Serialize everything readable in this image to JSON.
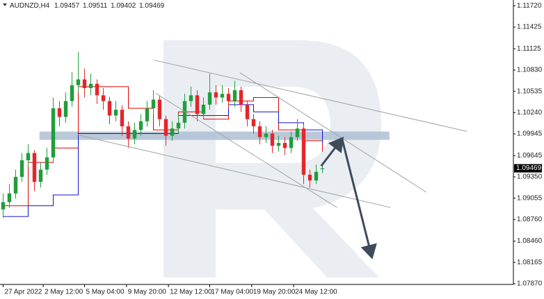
{
  "chart_data": {
    "type": "candlestick",
    "symbol": "AUDNZD,H4",
    "ylim": [
      1.0786,
      1.118
    ],
    "xlim": [
      -0.5,
      81.5
    ],
    "yticks": [
      {
        "value": 1.1172,
        "label": "1.11720"
      },
      1.11425,
      1.11125,
      {
        "value": 1.1083,
        "label": "1.10830"
      },
      1.10535,
      {
        "value": 1.1024,
        "label": "1.10240"
      },
      1.09945,
      1.09645,
      {
        "value": 1.0935,
        "label": "1.09350"
      },
      1.09055,
      {
        "value": 1.0876,
        "label": "1.08760"
      },
      {
        "value": 1.0846,
        "label": "1.08460"
      },
      1.08165,
      {
        "value": 1.0787,
        "label": "1.07870"
      }
    ],
    "xticks": [
      {
        "value": 0,
        "label": "27 Apr 2022"
      },
      {
        "value": 6.4,
        "label": "2 May 12:00"
      },
      {
        "value": 13,
        "label": "5 May 04:00"
      },
      {
        "value": 19.7,
        "label": "9 May 20:00"
      },
      {
        "value": 26.4,
        "label": "12 May 12:00"
      },
      {
        "value": 33,
        "label": "17 May 04:00"
      },
      {
        "value": 39.7,
        "label": "19 May 20:00"
      },
      {
        "value": 46.4,
        "label": "24 May 12:00"
      }
    ],
    "up_color": "#1f9e3c",
    "down_color": "#e3262b",
    "open": [
      1.089,
      1.09,
      1.0912,
      1.0935,
      1.0958,
      1.0968,
      1.0928,
      1.0945,
      1.0962,
      1.103,
      1.1018,
      1.104,
      1.1062,
      1.107,
      1.1058,
      1.1064,
      1.1048,
      1.104,
      1.102,
      1.1028,
      1.1005,
      1.0988,
      1.1,
      1.1012,
      1.103,
      1.1042,
      1.1015,
      1.0992,
      1.1002,
      1.101,
      1.104,
      1.1048,
      1.1022,
      1.1035,
      1.1052,
      1.1045,
      1.105,
      1.104,
      1.1055,
      1.1035,
      1.1015,
      1.1005,
      1.099,
      1.0995,
      1.0978,
      1.0982,
      1.0975,
      1.099,
      1.1002,
      1.0938,
      1.093,
      1.09457
    ],
    "high": [
      1.0912,
      1.0925,
      1.0945,
      1.0968,
      1.098,
      1.0972,
      1.0955,
      1.0975,
      1.1045,
      1.104,
      1.1052,
      1.108,
      1.1108,
      1.1085,
      1.1078,
      1.107,
      1.1058,
      1.1046,
      1.104,
      1.1034,
      1.1012,
      1.101,
      1.1022,
      1.104,
      1.1055,
      1.1048,
      1.102,
      1.1012,
      1.1022,
      1.105,
      1.106,
      1.1055,
      1.1045,
      1.1078,
      1.1062,
      1.1062,
      1.1058,
      1.1068,
      1.106,
      1.104,
      1.1022,
      1.1012,
      1.1005,
      1.1,
      1.0992,
      1.099,
      1.0998,
      1.1015,
      1.1008,
      1.0945,
      1.0952,
      1.09511
    ],
    "low": [
      1.0878,
      1.0892,
      1.0905,
      1.0928,
      1.095,
      1.0915,
      1.092,
      1.0938,
      1.0955,
      1.1005,
      1.101,
      1.1032,
      1.1052,
      1.1045,
      1.1048,
      1.1036,
      1.1028,
      1.1008,
      1.1012,
      1.0992,
      1.0975,
      1.098,
      1.0992,
      1.1005,
      1.1022,
      1.1005,
      1.0978,
      1.0985,
      1.0995,
      1.1002,
      1.1032,
      1.1012,
      1.1015,
      1.1028,
      1.1035,
      1.1038,
      1.103,
      1.1032,
      1.1025,
      1.1005,
      1.0995,
      1.098,
      1.0982,
      1.0968,
      1.097,
      1.0965,
      1.0968,
      1.0985,
      1.0925,
      1.092,
      1.0925,
      1.09402
    ],
    "close": [
      1.09,
      1.0912,
      1.0935,
      1.0958,
      1.0968,
      1.0928,
      1.0945,
      1.0962,
      1.103,
      1.1018,
      1.104,
      1.1062,
      1.107,
      1.1058,
      1.1064,
      1.1048,
      1.104,
      1.102,
      1.1028,
      1.1005,
      1.0988,
      1.1,
      1.1012,
      1.103,
      1.1042,
      1.1015,
      1.0992,
      1.1002,
      1.101,
      1.104,
      1.1048,
      1.1022,
      1.1035,
      1.1052,
      1.1045,
      1.105,
      1.104,
      1.1055,
      1.1035,
      1.1015,
      1.1005,
      1.099,
      1.0995,
      1.0978,
      1.0982,
      1.0975,
      1.099,
      1.1002,
      1.0938,
      1.093,
      1.0942,
      1.09469
    ],
    "indicators": [
      {
        "color": "#e00000",
        "x": [
          0,
          4,
          8,
          12,
          16,
          20,
          24,
          28,
          32,
          36,
          40,
          44,
          48,
          51
        ],
        "values": [
          1.0895,
          1.0955,
          1.0975,
          1.106,
          1.106,
          1.103,
          1.1,
          1.1025,
          1.1015,
          1.104,
          1.1045,
          1.1,
          1.0985,
          1.097
        ]
      },
      {
        "color": "#1010d0",
        "x": [
          0,
          4,
          8,
          12,
          16,
          20,
          24,
          28,
          32,
          36,
          40,
          44,
          48,
          51
        ],
        "values": [
          1.088,
          1.0895,
          1.091,
          1.0995,
          1.0995,
          1.0995,
          1.0995,
          1.102,
          1.102,
          1.1035,
          1.1025,
          1.101,
          1.1,
          1.0982
        ]
      }
    ],
    "band": {
      "color": "#aebfd3",
      "x": [
        5.8,
        61.7
      ],
      "y": 1.0992
    },
    "trendlines": [
      {
        "color": "#a0a0a0",
        "x": [
          24.1,
          74.1
        ],
        "y": [
          1.10967,
          1.0998
        ]
      },
      {
        "color": "#a0a0a0",
        "x": [
          37.8,
          67.6
        ],
        "y": [
          1.10794,
          1.09137
        ]
      },
      {
        "color": "#a0a0a0",
        "x": [
          11.9,
          61.9
        ],
        "y": [
          1.09932,
          1.08926
        ]
      },
      {
        "color": "#a0a0a0",
        "x": [
          24.4,
          53.3
        ],
        "y": [
          1.10507,
          1.08926
        ]
      }
    ],
    "arrows": [
      {
        "color": "#3d4b5a",
        "x": [
          50.8,
          54.2
        ],
        "y": [
          1.09501,
          1.09884
        ]
      },
      {
        "color": "#3d4b5a",
        "x": [
          54.2,
          58.9
        ],
        "y": [
          1.09855,
          1.08236
        ]
      }
    ]
  }
}
